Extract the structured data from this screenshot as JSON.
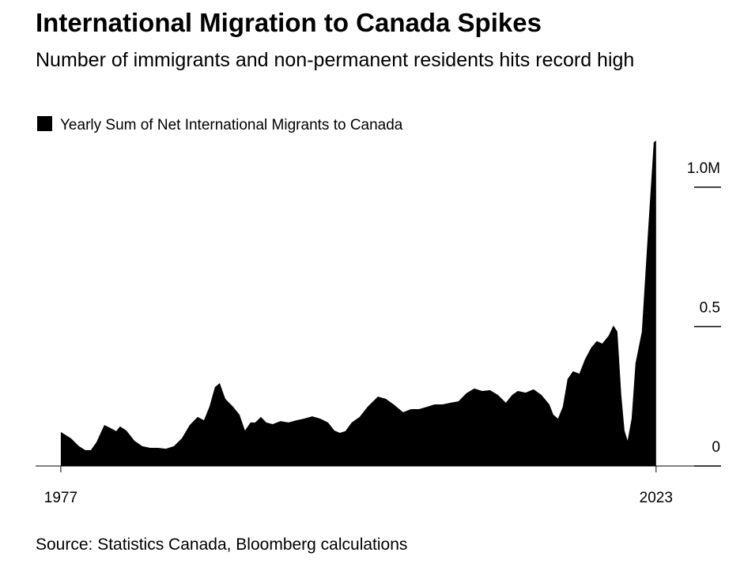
{
  "chart_data": {
    "type": "area",
    "title": "International Migration to Canada Spikes",
    "subtitle": "Number of immigrants and non-permanent residents hits record high",
    "source": "Source: Statistics Canada, Bloomberg calculations",
    "x": [
      1977,
      1977.79,
      1978.4,
      1978.89,
      1979.32,
      1979.75,
      1980.36,
      1980.85,
      1981.28,
      1981.58,
      1982.07,
      1982.68,
      1983.29,
      1983.9,
      1984.51,
      1985.12,
      1985.74,
      1986.35,
      1986.96,
      1987.57,
      1988.06,
      1988.48,
      1988.91,
      1989.28,
      1989.71,
      1990.32,
      1990.81,
      1991.23,
      1991.66,
      1992.03,
      1992.46,
      1992.88,
      1993.37,
      1993.98,
      1994.59,
      1995.2,
      1995.81,
      1996.43,
      1997.04,
      1997.65,
      1998.14,
      1998.56,
      1998.99,
      1999.48,
      2000.09,
      2000.7,
      2001.5,
      2002.11,
      2002.72,
      2003.45,
      2004.06,
      2004.67,
      2005.28,
      2005.89,
      2006.51,
      2007.12,
      2007.73,
      2008.34,
      2008.95,
      2009.56,
      2010.17,
      2010.78,
      2011.39,
      2011.88,
      2012.31,
      2012.92,
      2013.53,
      2014.14,
      2014.75,
      2015.06,
      2015.42,
      2015.79,
      2016.16,
      2016.58,
      2017.07,
      2017.5,
      2017.99,
      2018.42,
      2018.84,
      2019.33,
      2019.7,
      2020.01,
      2020.31,
      2020.56,
      2020.8,
      2021.11,
      2021.41,
      2021.9,
      2022.39,
      2022.82,
      2023
    ],
    "series": [
      {
        "name": "Yearly Sum of Net International Migrants to Canada",
        "color": "#000000",
        "values": [
          0.122,
          0.099,
          0.071,
          0.057,
          0.057,
          0.085,
          0.147,
          0.136,
          0.125,
          0.142,
          0.127,
          0.091,
          0.071,
          0.065,
          0.065,
          0.062,
          0.071,
          0.099,
          0.147,
          0.176,
          0.164,
          0.212,
          0.283,
          0.297,
          0.241,
          0.212,
          0.184,
          0.127,
          0.156,
          0.156,
          0.176,
          0.156,
          0.15,
          0.161,
          0.156,
          0.164,
          0.17,
          0.178,
          0.17,
          0.156,
          0.127,
          0.119,
          0.125,
          0.156,
          0.176,
          0.212,
          0.249,
          0.241,
          0.221,
          0.193,
          0.204,
          0.204,
          0.212,
          0.221,
          0.221,
          0.227,
          0.232,
          0.261,
          0.278,
          0.269,
          0.272,
          0.255,
          0.227,
          0.255,
          0.269,
          0.263,
          0.275,
          0.255,
          0.221,
          0.184,
          0.17,
          0.212,
          0.312,
          0.34,
          0.331,
          0.382,
          0.425,
          0.448,
          0.439,
          0.467,
          0.504,
          0.482,
          0.255,
          0.127,
          0.091,
          0.17,
          0.368,
          0.482,
          0.85,
          1.161,
          1.167
        ]
      }
    ],
    "xlim": [
      1975.05,
      2027.9
    ],
    "xticks": [
      1977,
      2023
    ],
    "ylim": [
      0,
      1.2
    ],
    "yticks": [
      0,
      0.5,
      {
        "value": 1,
        "label": "1.0M"
      }
    ]
  }
}
